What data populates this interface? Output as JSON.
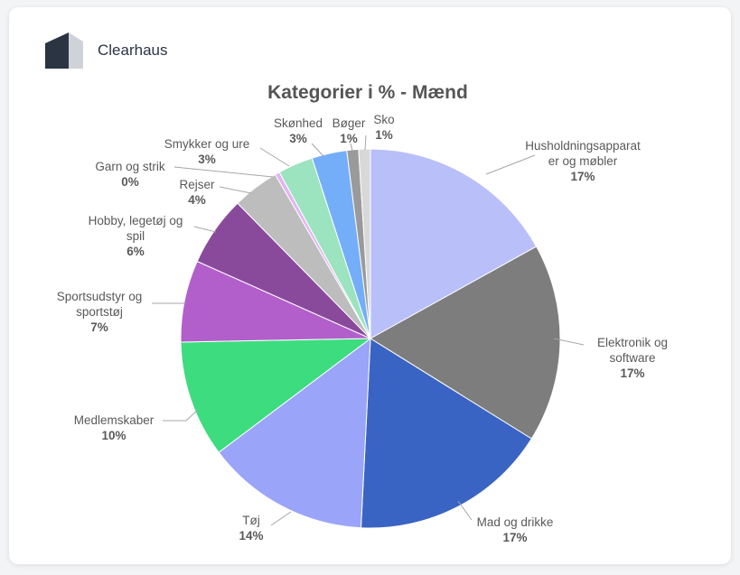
{
  "brand": {
    "name": "Clearhaus",
    "logo_icon": "clearhaus-logo-icon"
  },
  "chart_data": {
    "type": "pie",
    "title": "Kategorier i % - Mænd",
    "start_angle_deg": 0,
    "direction": "clockwise",
    "slices": [
      {
        "label": "Husholdningsapparat er og møbler",
        "lines": [
          "Husholdningsapparat",
          "er og møbler"
        ],
        "value": 17,
        "pct": "17%",
        "color": "#b8bff9"
      },
      {
        "label": "Elektronik og software",
        "lines": [
          "Elektronik og",
          "software"
        ],
        "value": 17,
        "pct": "17%",
        "color": "#7d7d7d"
      },
      {
        "label": "Mad og drikke",
        "lines": [
          "Mad og drikke"
        ],
        "value": 17,
        "pct": "17%",
        "color": "#3a64c3"
      },
      {
        "label": "Tøj",
        "lines": [
          "Tøj"
        ],
        "value": 14,
        "pct": "14%",
        "color": "#9aa4f8"
      },
      {
        "label": "Medlemskaber",
        "lines": [
          "Medlemskaber"
        ],
        "value": 10,
        "pct": "10%",
        "color": "#3ddc7f"
      },
      {
        "label": "Sportsudstyr og sportstøj",
        "lines": [
          "Sportsudstyr og",
          "sportstøj"
        ],
        "value": 7,
        "pct": "7%",
        "color": "#b25fcb"
      },
      {
        "label": "Hobby, legetøj og spil",
        "lines": [
          "Hobby, legetøj og",
          "spil"
        ],
        "value": 6,
        "pct": "6%",
        "color": "#8a4a9c"
      },
      {
        "label": "Rejser",
        "lines": [
          "Rejser"
        ],
        "value": 4,
        "pct": "4%",
        "color": "#bdbdbd"
      },
      {
        "label": "Garn og strik",
        "lines": [
          "Garn og strik"
        ],
        "value": 0.4,
        "pct": "0%",
        "color": "#e2b6f2"
      },
      {
        "label": "Smykker og ure",
        "lines": [
          "Smykker og ure"
        ],
        "value": 3,
        "pct": "3%",
        "color": "#9ce3bf"
      },
      {
        "label": "Skønhed",
        "lines": [
          "Skønhed"
        ],
        "value": 3,
        "pct": "3%",
        "color": "#74aef9"
      },
      {
        "label": "Bøger",
        "lines": [
          "Bøger"
        ],
        "value": 1,
        "pct": "1%",
        "color": "#9a9a9a"
      },
      {
        "label": "Sko",
        "lines": [
          "Sko"
        ],
        "value": 1,
        "pct": "1%",
        "color": "#d8d8d8"
      }
    ]
  }
}
